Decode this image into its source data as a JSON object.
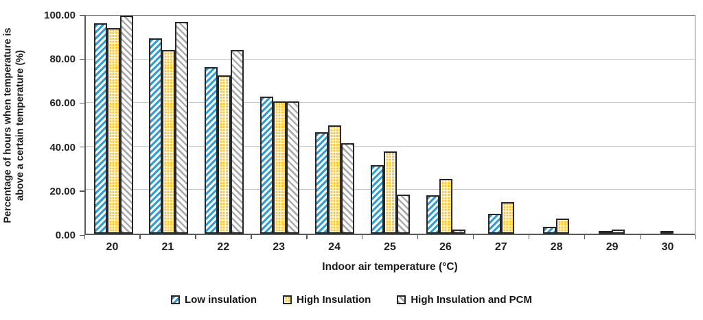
{
  "chart_data": {
    "type": "bar",
    "title": "",
    "xlabel": "Indoor air temperature (°C)",
    "ylabel_line1": "Percentage of  hours when temperature is",
    "ylabel_line2": "above a certain temperature (%)",
    "categories": [
      "20",
      "21",
      "22",
      "23",
      "24",
      "25",
      "26",
      "27",
      "28",
      "29",
      "30"
    ],
    "series": [
      {
        "name": "Low insulation",
        "pattern": "blue-diagonal-up-hatch",
        "color": "#2e9ed6",
        "values": [
          96.6,
          89.6,
          76.4,
          62.9,
          46.4,
          31.4,
          17.6,
          9.0,
          3.2,
          1.1,
          0
        ]
      },
      {
        "name": "High Insulation",
        "pattern": "yellow-grid",
        "color": "#ffc82e",
        "values": [
          94.2,
          84.4,
          72.6,
          60.8,
          49.8,
          37.8,
          25.3,
          14.4,
          6.8,
          2.0,
          0.3
        ]
      },
      {
        "name": "High Insulation and PCM",
        "pattern": "gray-diagonal-down-hatch",
        "color": "#ababab",
        "values": [
          100.0,
          97.3,
          84.2,
          60.8,
          41.4,
          17.9,
          1.9,
          0,
          0,
          0,
          0
        ]
      }
    ],
    "ylim": [
      0,
      100
    ],
    "ytick_values": [
      0,
      20,
      40,
      60,
      80,
      100
    ],
    "ytick_labels": [
      "0.00",
      "20.00",
      "40.00",
      "60.00",
      "80.00",
      "100.00"
    ],
    "grid": true,
    "legend_position": "bottom",
    "style": {
      "bar_border": "#262626",
      "gridline": "#c8c8c8",
      "axis": "#595959",
      "frame": "#7d7d7d"
    }
  }
}
